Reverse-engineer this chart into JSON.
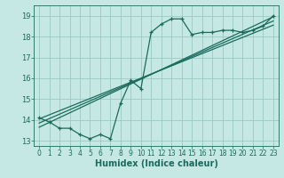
{
  "background_color": "#c5e8e5",
  "grid_color": "#9dc8c4",
  "line_color": "#1a6b5c",
  "xlabel": "Humidex (Indice chaleur)",
  "xlim": [
    -0.5,
    23.5
  ],
  "ylim": [
    12.75,
    19.5
  ],
  "yticks": [
    13,
    14,
    15,
    16,
    17,
    18,
    19
  ],
  "xticks": [
    0,
    1,
    2,
    3,
    4,
    5,
    6,
    7,
    8,
    9,
    10,
    11,
    12,
    13,
    14,
    15,
    16,
    17,
    18,
    19,
    20,
    21,
    22,
    23
  ],
  "curve1_x": [
    0,
    1,
    2,
    3,
    4,
    5,
    6,
    7,
    8,
    9,
    10,
    11,
    12,
    13,
    14,
    15,
    16,
    17,
    18,
    19,
    20,
    21,
    22,
    23
  ],
  "curve1_y": [
    14.1,
    13.9,
    13.6,
    13.6,
    13.3,
    13.1,
    13.3,
    13.1,
    14.8,
    15.9,
    15.5,
    18.2,
    18.6,
    18.85,
    18.85,
    18.1,
    18.2,
    18.2,
    18.3,
    18.3,
    18.2,
    18.3,
    18.5,
    19.0
  ],
  "line1_x": [
    0,
    23
  ],
  "line1_y": [
    14.05,
    18.55
  ],
  "line2_x": [
    0,
    23
  ],
  "line2_y": [
    13.85,
    18.75
  ],
  "line3_x": [
    0,
    23
  ],
  "line3_y": [
    13.65,
    18.95
  ],
  "tick_fontsize": 5.5,
  "xlabel_fontsize": 7
}
